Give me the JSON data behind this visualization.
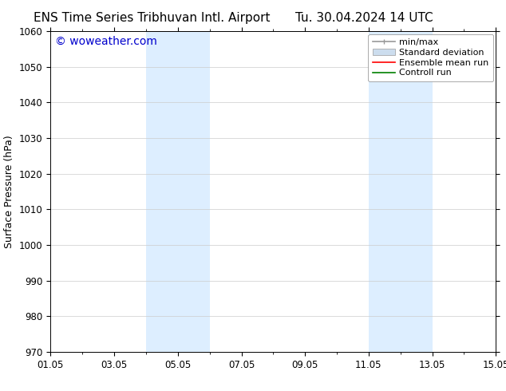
{
  "title_left": "ENS Time Series Tribhuvan Intl. Airport",
  "title_right": "Tu. 30.04.2024 14 UTC",
  "ylabel": "Surface Pressure (hPa)",
  "ylim": [
    970,
    1060
  ],
  "yticks": [
    970,
    980,
    990,
    1000,
    1010,
    1020,
    1030,
    1040,
    1050,
    1060
  ],
  "xtick_labels": [
    "01.05",
    "03.05",
    "05.05",
    "07.05",
    "09.05",
    "11.05",
    "13.05",
    "15.05"
  ],
  "xtick_positions": [
    0,
    2,
    4,
    6,
    8,
    10,
    12,
    14
  ],
  "x_total_days": 14,
  "shaded_regions": [
    {
      "x_start": 3,
      "x_end": 5
    },
    {
      "x_start": 10,
      "x_end": 12
    }
  ],
  "shaded_color": "#ddeeff",
  "background_color": "#ffffff",
  "plot_bg_color": "#ffffff",
  "watermark_text": "© woweather.com",
  "watermark_color": "#0000cc",
  "legend_entries": [
    {
      "label": "min/max",
      "color": "#999999",
      "lw": 1.2
    },
    {
      "label": "Standard deviation",
      "color": "#ccddee",
      "lw": 8
    },
    {
      "label": "Ensemble mean run",
      "color": "#ff0000",
      "lw": 1.2
    },
    {
      "label": "Controll run",
      "color": "#008000",
      "lw": 1.2
    }
  ],
  "title_fontsize": 11,
  "axis_fontsize": 9,
  "tick_fontsize": 8.5,
  "watermark_fontsize": 10,
  "legend_fontsize": 8
}
